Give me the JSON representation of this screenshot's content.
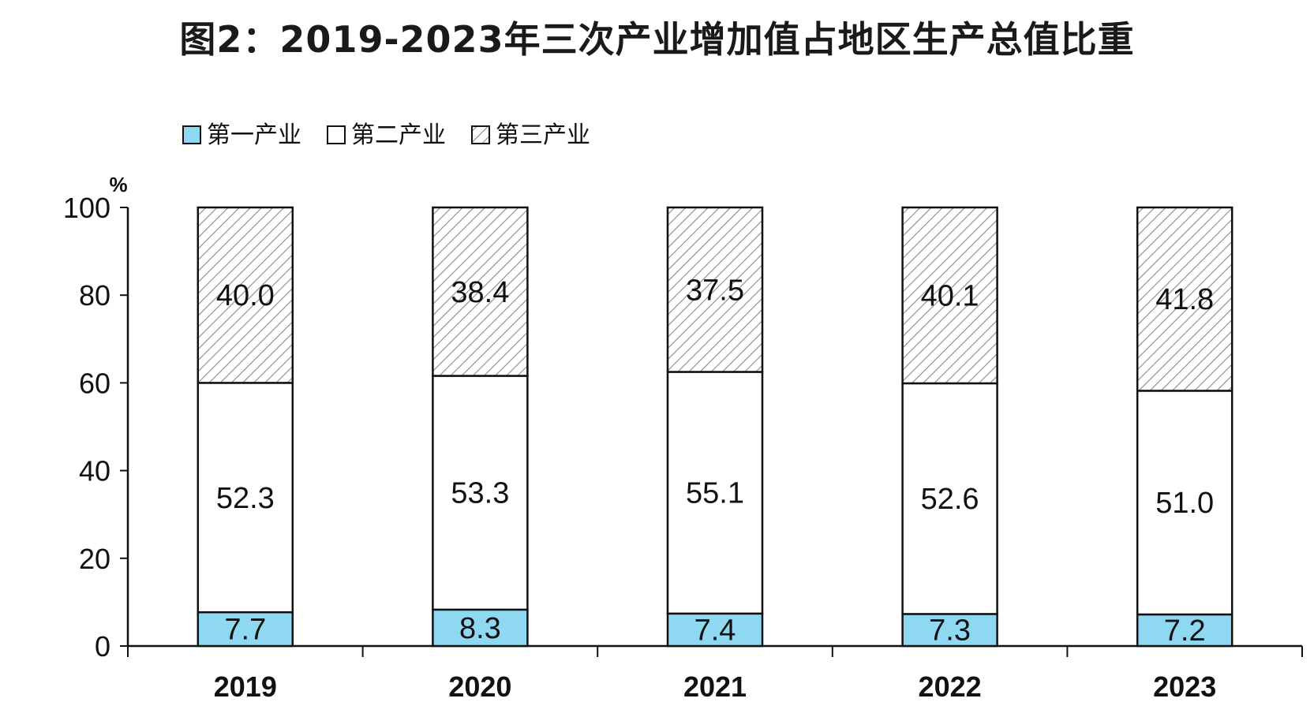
{
  "chart_data": {
    "type": "bar",
    "stacked": true,
    "title": "图2：2019-2023年三次产业增加值占地区生产总值比重",
    "ylabel": "%",
    "xlabel": "",
    "ylim": [
      0,
      100
    ],
    "yticks": [
      "0",
      "20",
      "40",
      "60",
      "80",
      "100"
    ],
    "categories": [
      "2019",
      "2020",
      "2021",
      "2022",
      "2023"
    ],
    "series": [
      {
        "name": "第一产业",
        "values": [
          7.7,
          8.3,
          7.4,
          7.3,
          7.2
        ],
        "labels": [
          "7.7",
          "8.3",
          "7.4",
          "7.3",
          "7.2"
        ],
        "color": "#8fd8f2",
        "pattern": "solid"
      },
      {
        "name": "第二产业",
        "values": [
          52.3,
          53.3,
          55.1,
          52.6,
          51.0
        ],
        "labels": [
          "52.3",
          "53.3",
          "55.1",
          "52.6",
          "51.0"
        ],
        "color": "#ffffff",
        "pattern": "solid"
      },
      {
        "name": "第三产业",
        "values": [
          40.0,
          38.4,
          37.5,
          40.1,
          41.8
        ],
        "labels": [
          "40.0",
          "38.4",
          "37.5",
          "40.1",
          "41.8"
        ],
        "color": "#ffffff",
        "pattern": "diagonal-hatch"
      }
    ],
    "legend_position": "top-left",
    "grid": false
  }
}
